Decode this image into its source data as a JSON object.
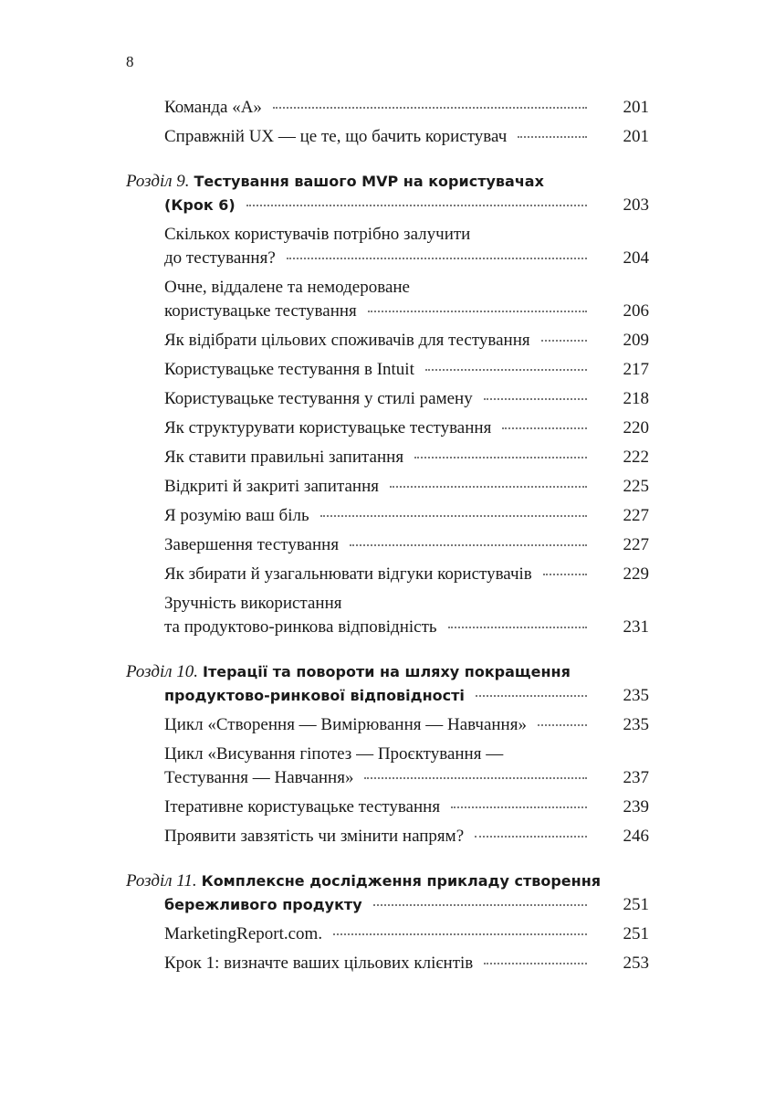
{
  "page_number": "8",
  "entries": [
    {
      "lines": [
        "Команда «А»"
      ],
      "page": "201"
    },
    {
      "lines": [
        "Справжній UX — це те, що бачить користувач"
      ],
      "page": "201"
    },
    {
      "label": "Розділ 9.",
      "lines": [
        "Тестування вашого MVP на користувачах",
        "(Крок 6)"
      ],
      "page": "203"
    },
    {
      "lines": [
        "Скількох користувачів потрібно залучити",
        "до тестування?"
      ],
      "page": "204"
    },
    {
      "lines": [
        "Очне, віддалене та немодероване",
        "користувацьке тестування"
      ],
      "page": "206"
    },
    {
      "lines": [
        "Як відібрати цільових споживачів для тестування"
      ],
      "page": "209"
    },
    {
      "lines": [
        "Користувацьке тестування в Intuit"
      ],
      "page": "217"
    },
    {
      "lines": [
        "Користувацьке тестування у стилі рамену"
      ],
      "page": "218"
    },
    {
      "lines": [
        "Як структурувати користувацьке тестування"
      ],
      "page": "220"
    },
    {
      "lines": [
        "Як ставити правильні запитання"
      ],
      "page": "222"
    },
    {
      "lines": [
        "Відкриті й закриті запитання"
      ],
      "page": "225"
    },
    {
      "lines": [
        "Я розумію ваш біль"
      ],
      "page": "227"
    },
    {
      "lines": [
        "Завершення тестування"
      ],
      "page": "227"
    },
    {
      "lines": [
        "Як збирати й узагальнювати відгуки користувачів"
      ],
      "page": "229"
    },
    {
      "lines": [
        "Зручність використання",
        "та продуктово-ринкова відповідність"
      ],
      "page": "231"
    },
    {
      "label": "Розділ 10.",
      "lines": [
        "Ітерації та повороти на шляху покращення",
        "продуктово-ринкової відповідності"
      ],
      "page": "235"
    },
    {
      "lines": [
        "Цикл «Створення — Вимірювання — Навчання»"
      ],
      "page": "235"
    },
    {
      "lines": [
        "Цикл «Висування гіпотез — Проєктування —",
        "Тестування — Навчання»"
      ],
      "page": "237"
    },
    {
      "lines": [
        "Ітеративне користувацьке тестування"
      ],
      "page": "239"
    },
    {
      "lines": [
        "Проявити завзятість чи змінити напрям?"
      ],
      "page": "246"
    },
    {
      "label": "Розділ 11.",
      "lines": [
        "Комплексне дослідження прикладу створення",
        "бережливого продукту"
      ],
      "page": "251"
    },
    {
      "lines": [
        "MarketingReport.com."
      ],
      "page": "251"
    },
    {
      "lines": [
        "Крок 1: визначте ваших цільових клієнтів"
      ],
      "page": "253"
    }
  ]
}
